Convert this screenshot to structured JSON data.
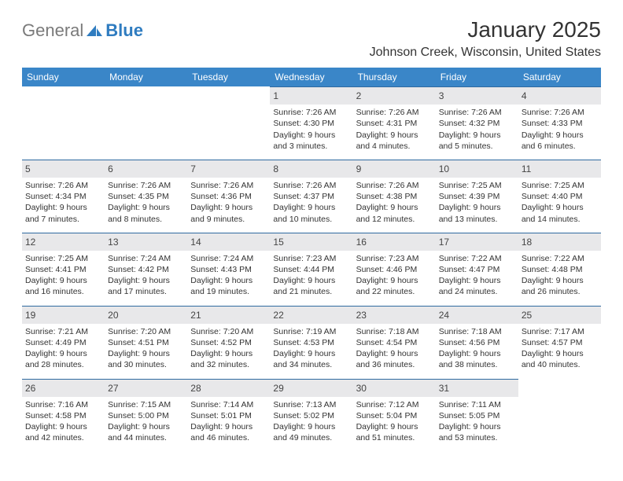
{
  "brand": {
    "part1": "General",
    "part2": "Blue"
  },
  "title": "January 2025",
  "location": "Johnson Creek, Wisconsin, United States",
  "colors": {
    "header_bg": "#3a86c8",
    "header_text": "#ffffff",
    "daynum_bg": "#e8e8ea",
    "daynum_border": "#2f6aa0",
    "body_text": "#333333",
    "logo_blue": "#2f7cc0",
    "logo_gray": "#7a7a7a"
  },
  "weekdays": [
    "Sunday",
    "Monday",
    "Tuesday",
    "Wednesday",
    "Thursday",
    "Friday",
    "Saturday"
  ],
  "weeks": [
    [
      {
        "blank": true
      },
      {
        "blank": true
      },
      {
        "blank": true
      },
      {
        "n": "1",
        "sr": "Sunrise: 7:26 AM",
        "ss": "Sunset: 4:30 PM",
        "d1": "Daylight: 9 hours",
        "d2": "and 3 minutes."
      },
      {
        "n": "2",
        "sr": "Sunrise: 7:26 AM",
        "ss": "Sunset: 4:31 PM",
        "d1": "Daylight: 9 hours",
        "d2": "and 4 minutes."
      },
      {
        "n": "3",
        "sr": "Sunrise: 7:26 AM",
        "ss": "Sunset: 4:32 PM",
        "d1": "Daylight: 9 hours",
        "d2": "and 5 minutes."
      },
      {
        "n": "4",
        "sr": "Sunrise: 7:26 AM",
        "ss": "Sunset: 4:33 PM",
        "d1": "Daylight: 9 hours",
        "d2": "and 6 minutes."
      }
    ],
    [
      {
        "n": "5",
        "sr": "Sunrise: 7:26 AM",
        "ss": "Sunset: 4:34 PM",
        "d1": "Daylight: 9 hours",
        "d2": "and 7 minutes."
      },
      {
        "n": "6",
        "sr": "Sunrise: 7:26 AM",
        "ss": "Sunset: 4:35 PM",
        "d1": "Daylight: 9 hours",
        "d2": "and 8 minutes."
      },
      {
        "n": "7",
        "sr": "Sunrise: 7:26 AM",
        "ss": "Sunset: 4:36 PM",
        "d1": "Daylight: 9 hours",
        "d2": "and 9 minutes."
      },
      {
        "n": "8",
        "sr": "Sunrise: 7:26 AM",
        "ss": "Sunset: 4:37 PM",
        "d1": "Daylight: 9 hours",
        "d2": "and 10 minutes."
      },
      {
        "n": "9",
        "sr": "Sunrise: 7:26 AM",
        "ss": "Sunset: 4:38 PM",
        "d1": "Daylight: 9 hours",
        "d2": "and 12 minutes."
      },
      {
        "n": "10",
        "sr": "Sunrise: 7:25 AM",
        "ss": "Sunset: 4:39 PM",
        "d1": "Daylight: 9 hours",
        "d2": "and 13 minutes."
      },
      {
        "n": "11",
        "sr": "Sunrise: 7:25 AM",
        "ss": "Sunset: 4:40 PM",
        "d1": "Daylight: 9 hours",
        "d2": "and 14 minutes."
      }
    ],
    [
      {
        "n": "12",
        "sr": "Sunrise: 7:25 AM",
        "ss": "Sunset: 4:41 PM",
        "d1": "Daylight: 9 hours",
        "d2": "and 16 minutes."
      },
      {
        "n": "13",
        "sr": "Sunrise: 7:24 AM",
        "ss": "Sunset: 4:42 PM",
        "d1": "Daylight: 9 hours",
        "d2": "and 17 minutes."
      },
      {
        "n": "14",
        "sr": "Sunrise: 7:24 AM",
        "ss": "Sunset: 4:43 PM",
        "d1": "Daylight: 9 hours",
        "d2": "and 19 minutes."
      },
      {
        "n": "15",
        "sr": "Sunrise: 7:23 AM",
        "ss": "Sunset: 4:44 PM",
        "d1": "Daylight: 9 hours",
        "d2": "and 21 minutes."
      },
      {
        "n": "16",
        "sr": "Sunrise: 7:23 AM",
        "ss": "Sunset: 4:46 PM",
        "d1": "Daylight: 9 hours",
        "d2": "and 22 minutes."
      },
      {
        "n": "17",
        "sr": "Sunrise: 7:22 AM",
        "ss": "Sunset: 4:47 PM",
        "d1": "Daylight: 9 hours",
        "d2": "and 24 minutes."
      },
      {
        "n": "18",
        "sr": "Sunrise: 7:22 AM",
        "ss": "Sunset: 4:48 PM",
        "d1": "Daylight: 9 hours",
        "d2": "and 26 minutes."
      }
    ],
    [
      {
        "n": "19",
        "sr": "Sunrise: 7:21 AM",
        "ss": "Sunset: 4:49 PM",
        "d1": "Daylight: 9 hours",
        "d2": "and 28 minutes."
      },
      {
        "n": "20",
        "sr": "Sunrise: 7:20 AM",
        "ss": "Sunset: 4:51 PM",
        "d1": "Daylight: 9 hours",
        "d2": "and 30 minutes."
      },
      {
        "n": "21",
        "sr": "Sunrise: 7:20 AM",
        "ss": "Sunset: 4:52 PM",
        "d1": "Daylight: 9 hours",
        "d2": "and 32 minutes."
      },
      {
        "n": "22",
        "sr": "Sunrise: 7:19 AM",
        "ss": "Sunset: 4:53 PM",
        "d1": "Daylight: 9 hours",
        "d2": "and 34 minutes."
      },
      {
        "n": "23",
        "sr": "Sunrise: 7:18 AM",
        "ss": "Sunset: 4:54 PM",
        "d1": "Daylight: 9 hours",
        "d2": "and 36 minutes."
      },
      {
        "n": "24",
        "sr": "Sunrise: 7:18 AM",
        "ss": "Sunset: 4:56 PM",
        "d1": "Daylight: 9 hours",
        "d2": "and 38 minutes."
      },
      {
        "n": "25",
        "sr": "Sunrise: 7:17 AM",
        "ss": "Sunset: 4:57 PM",
        "d1": "Daylight: 9 hours",
        "d2": "and 40 minutes."
      }
    ],
    [
      {
        "n": "26",
        "sr": "Sunrise: 7:16 AM",
        "ss": "Sunset: 4:58 PM",
        "d1": "Daylight: 9 hours",
        "d2": "and 42 minutes."
      },
      {
        "n": "27",
        "sr": "Sunrise: 7:15 AM",
        "ss": "Sunset: 5:00 PM",
        "d1": "Daylight: 9 hours",
        "d2": "and 44 minutes."
      },
      {
        "n": "28",
        "sr": "Sunrise: 7:14 AM",
        "ss": "Sunset: 5:01 PM",
        "d1": "Daylight: 9 hours",
        "d2": "and 46 minutes."
      },
      {
        "n": "29",
        "sr": "Sunrise: 7:13 AM",
        "ss": "Sunset: 5:02 PM",
        "d1": "Daylight: 9 hours",
        "d2": "and 49 minutes."
      },
      {
        "n": "30",
        "sr": "Sunrise: 7:12 AM",
        "ss": "Sunset: 5:04 PM",
        "d1": "Daylight: 9 hours",
        "d2": "and 51 minutes."
      },
      {
        "n": "31",
        "sr": "Sunrise: 7:11 AM",
        "ss": "Sunset: 5:05 PM",
        "d1": "Daylight: 9 hours",
        "d2": "and 53 minutes."
      },
      {
        "blank": true
      }
    ]
  ]
}
